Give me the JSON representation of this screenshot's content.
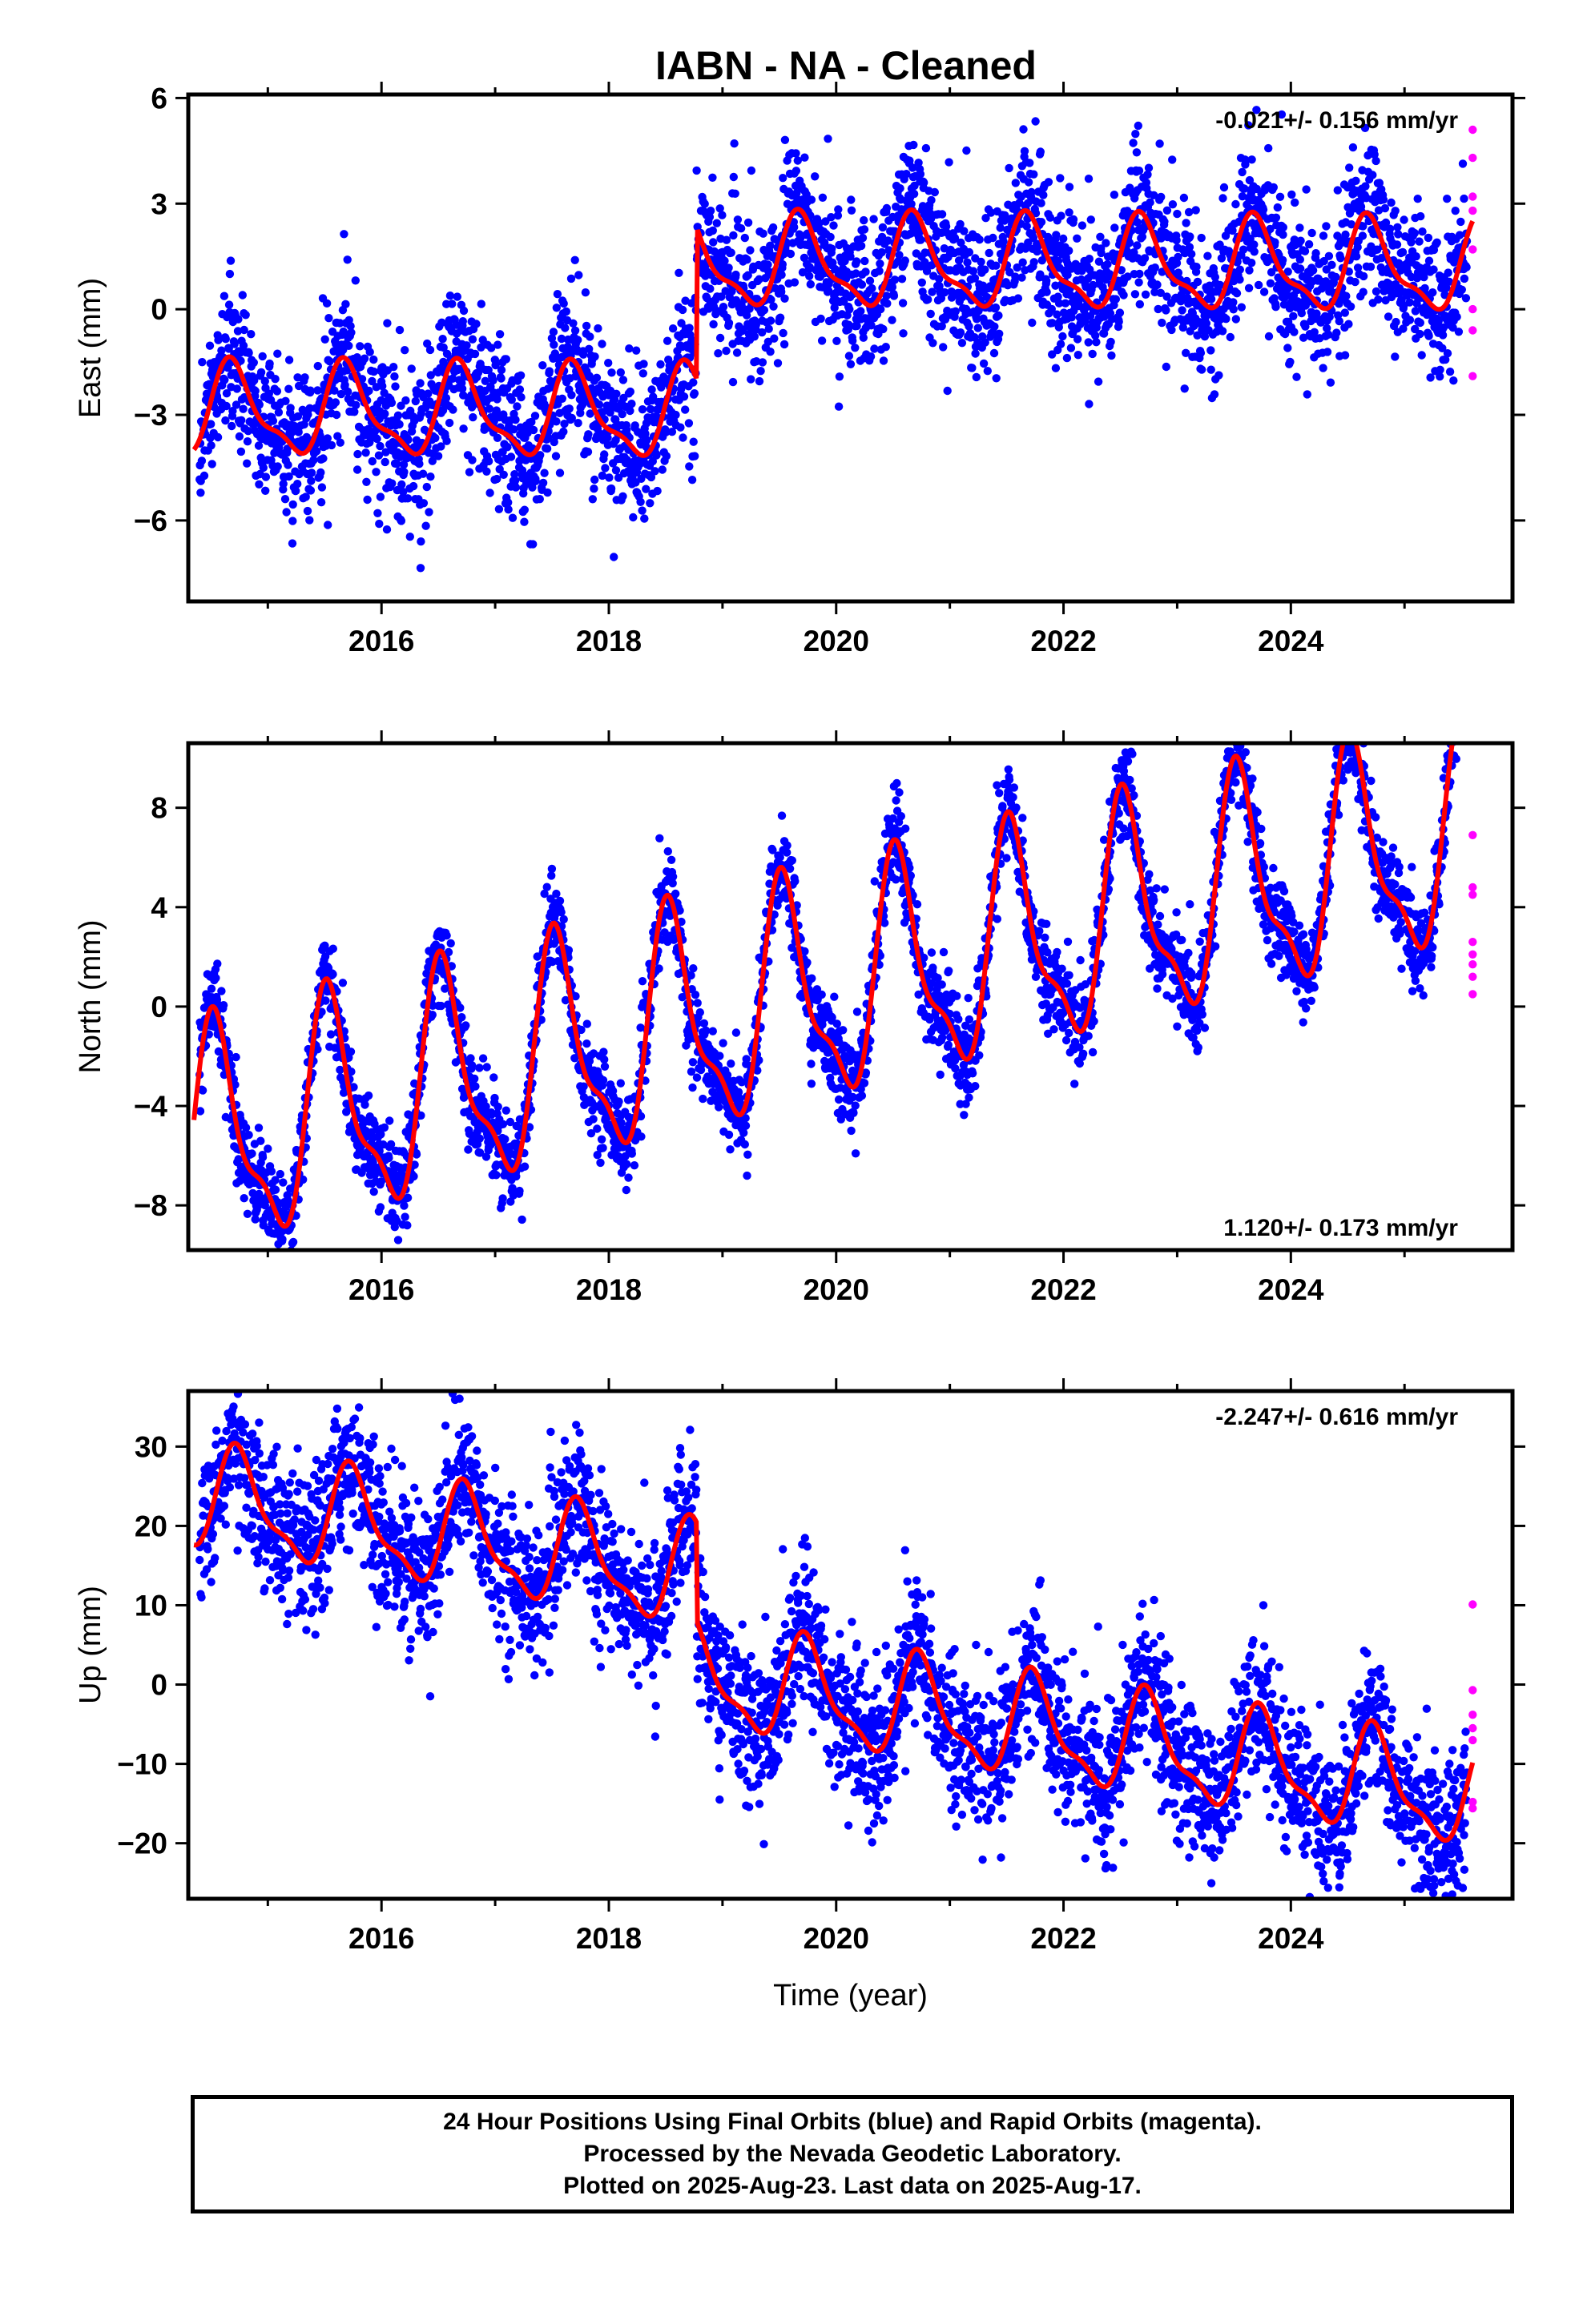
{
  "title": "IABN  - NA - Cleaned",
  "footer": {
    "line1": "24 Hour Positions Using Final Orbits (blue) and Rapid Orbits (magenta).",
    "line2": "Processed by the Nevada Geodetic Laboratory.",
    "line3": "Plotted on 2025-Aug-23. Last data on 2025-Aug-17."
  },
  "colors": {
    "final": "#0000ff",
    "rapid": "#ff00ff",
    "model": "#ff0000",
    "axis": "#000000"
  },
  "chart_data": [
    {
      "type": "scatter",
      "ylabel": "East (mm)",
      "xlabel": "",
      "xlim": [
        2014.3,
        2025.95
      ],
      "ylim": [
        -8.3,
        6.1
      ],
      "xticks": [
        2016,
        2018,
        2020,
        2022,
        2024
      ],
      "xtick_labels": [
        "2016",
        "2018",
        "2020",
        "2022",
        "2024"
      ],
      "yticks": [
        -6,
        -3,
        0,
        3,
        6
      ],
      "ytick_labels": [
        "−6",
        "−3",
        "0",
        "3",
        "6"
      ],
      "rate_label": "-0.021+/- 0.156 mm/yr",
      "rate_position": "top-right",
      "series": [
        {
          "points": "final-orbits",
          "x_start": 2014.4,
          "x_end": 2025.55,
          "offset_before": -3.0,
          "offset_after": 1.3,
          "step_at": 2018.77,
          "trend_mm_per_yr": -0.021,
          "annual_amplitude": 1.2,
          "annual_phase_peak": 2014.7,
          "scatter_sd": 1.05
        },
        {
          "points": "rapid-orbits",
          "x": 2025.6,
          "values": [
            5.1,
            4.3,
            3.2,
            2.8,
            1.7,
            0.0,
            -0.6,
            -1.9
          ]
        },
        {
          "points": "model-fit",
          "x_start": 2014.35,
          "x_end": 2025.6
        }
      ]
    },
    {
      "type": "scatter",
      "ylabel": "North (mm)",
      "xlabel": "",
      "xlim": [
        2014.3,
        2025.95
      ],
      "ylim": [
        -9.8,
        10.6
      ],
      "xticks": [
        2016,
        2018,
        2020,
        2022,
        2024
      ],
      "xtick_labels": [
        "2016",
        "2018",
        "2020",
        "2022",
        "2024"
      ],
      "yticks": [
        -8,
        -4,
        0,
        4,
        8
      ],
      "ytick_labels": [
        "−8",
        "−4",
        "0",
        "4",
        "8"
      ],
      "rate_label": "1.120+/- 0.173 mm/yr",
      "rate_position": "bottom-right",
      "series": [
        {
          "points": "final-orbits",
          "x_start": 2014.4,
          "x_end": 2025.55,
          "offset_at_2014": -5.6,
          "trend_mm_per_yr": 1.12,
          "annual_amplitude": 4.2,
          "annual_phase_peak": 2015.55,
          "scatter_sd": 0.9
        },
        {
          "points": "rapid-orbits",
          "x": 2025.6,
          "values": [
            6.9,
            4.8,
            4.5,
            2.6,
            2.1,
            1.7,
            1.2,
            0.5
          ]
        },
        {
          "points": "model-fit",
          "x_start": 2014.35,
          "x_end": 2025.6
        }
      ]
    },
    {
      "type": "scatter",
      "ylabel": "Up (mm)",
      "xlabel": "Time (year)",
      "xlim": [
        2014.3,
        2025.95
      ],
      "ylim": [
        -27,
        37
      ],
      "xticks": [
        2016,
        2018,
        2020,
        2022,
        2024
      ],
      "xtick_labels": [
        "2016",
        "2018",
        "2020",
        "2022",
        "2024"
      ],
      "yticks": [
        -20,
        -10,
        0,
        10,
        20,
        30
      ],
      "ytick_labels": [
        "−20",
        "−10",
        "0",
        "10",
        "20",
        "30"
      ],
      "rate_label": "-2.247+/- 0.616 mm/yr",
      "rate_position": "top-right",
      "series": [
        {
          "points": "final-orbits",
          "x_start": 2014.4,
          "x_end": 2025.55,
          "offset_before": 13.5,
          "offset_after": 1.0,
          "step_at": 2018.77,
          "trend_mm_per_yr": -2.247,
          "annual_amplitude": 6.0,
          "annual_phase_peak": 2014.75,
          "scatter_sd": 4.6
        },
        {
          "points": "rapid-orbits",
          "x": 2025.6,
          "values": [
            10.1,
            -0.7,
            -3.8,
            -5.5,
            -7.0,
            -14.8,
            -15.6
          ]
        },
        {
          "points": "model-fit",
          "x_start": 2014.35,
          "x_end": 2025.6
        }
      ]
    }
  ]
}
